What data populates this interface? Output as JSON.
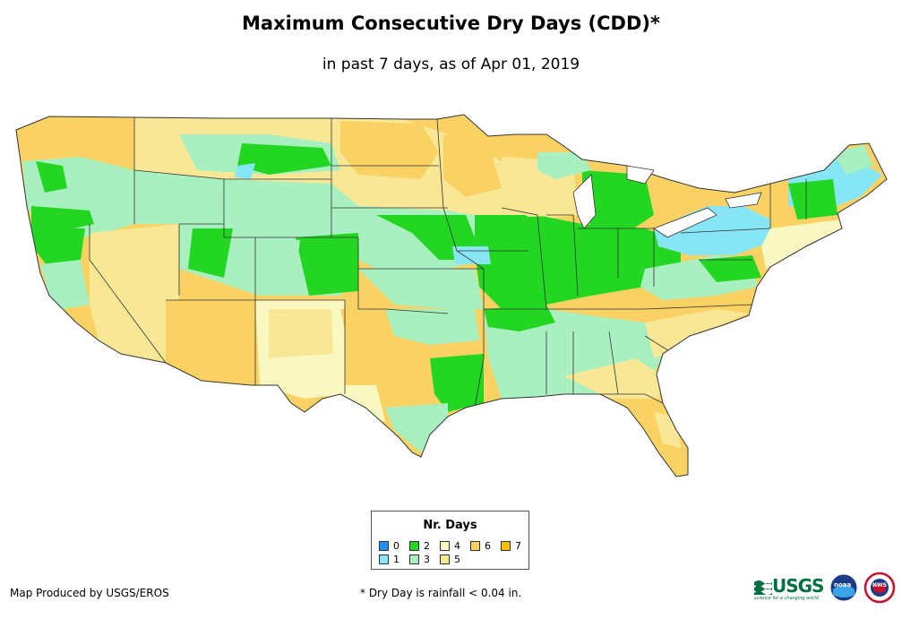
{
  "title": "Maximum Consecutive Dry Days (CDD)*",
  "subtitle": "in past 7 days, as of Apr 01, 2019",
  "legend": {
    "title": "Nr. Days",
    "items": [
      {
        "label": "0",
        "color": "#1e90ff"
      },
      {
        "label": "1",
        "color": "#87e6f5"
      },
      {
        "label": "2",
        "color": "#22d622"
      },
      {
        "label": "3",
        "color": "#a8f0c0"
      },
      {
        "label": "4",
        "color": "#f8f8c0"
      },
      {
        "label": "5",
        "color": "#f8e896"
      },
      {
        "label": "6",
        "color": "#fad264"
      },
      {
        "label": "7",
        "color": "#f8c000"
      }
    ]
  },
  "footer": {
    "producer": "Map Produced by USGS/EROS",
    "note": "* Dry Day is rainfall < 0.04 in."
  },
  "logos": {
    "usgs": "USGS",
    "usgs_tagline": "science for a changing world",
    "noaa": "noaa",
    "nws": "NWS"
  }
}
